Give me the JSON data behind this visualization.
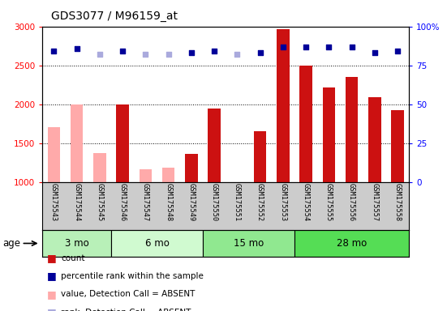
{
  "title": "GDS3077 / M96159_at",
  "samples": [
    "GSM175543",
    "GSM175544",
    "GSM175545",
    "GSM175546",
    "GSM175547",
    "GSM175548",
    "GSM175549",
    "GSM175550",
    "GSM175551",
    "GSM175552",
    "GSM175553",
    "GSM175554",
    "GSM175555",
    "GSM175556",
    "GSM175557",
    "GSM175558"
  ],
  "count_values": [
    1700,
    2000,
    1370,
    2000,
    1165,
    1185,
    1360,
    1940,
    null,
    1650,
    2960,
    2500,
    2210,
    2350,
    2085,
    1920
  ],
  "count_absent": [
    true,
    true,
    true,
    false,
    true,
    true,
    false,
    false,
    true,
    false,
    false,
    false,
    false,
    false,
    false,
    false
  ],
  "percentile_values": [
    84,
    86,
    82,
    84,
    82,
    82,
    83,
    84,
    82,
    83,
    87,
    87,
    87,
    87,
    83,
    84
  ],
  "percentile_absent": [
    false,
    false,
    true,
    false,
    true,
    true,
    false,
    false,
    true,
    false,
    false,
    false,
    false,
    false,
    false,
    false
  ],
  "age_groups": [
    {
      "label": "3 mo",
      "start": 0,
      "end": 3,
      "color": "#b8f0b8"
    },
    {
      "label": "6 mo",
      "start": 3,
      "end": 7,
      "color": "#d0fad0"
    },
    {
      "label": "15 mo",
      "start": 7,
      "end": 11,
      "color": "#90e890"
    },
    {
      "label": "28 mo",
      "start": 11,
      "end": 16,
      "color": "#55dd55"
    }
  ],
  "ylim_left": [
    1000,
    3000
  ],
  "ylim_right": [
    0,
    100
  ],
  "yticks_left": [
    1000,
    1500,
    2000,
    2500,
    3000
  ],
  "yticks_right": [
    0,
    25,
    50,
    75,
    100
  ],
  "bar_color_present": "#cc1111",
  "bar_color_absent": "#ffaaaa",
  "dot_color_present": "#000099",
  "dot_color_absent": "#aaaadd",
  "bg_color": "#cccccc",
  "plot_bg": "#ffffff"
}
